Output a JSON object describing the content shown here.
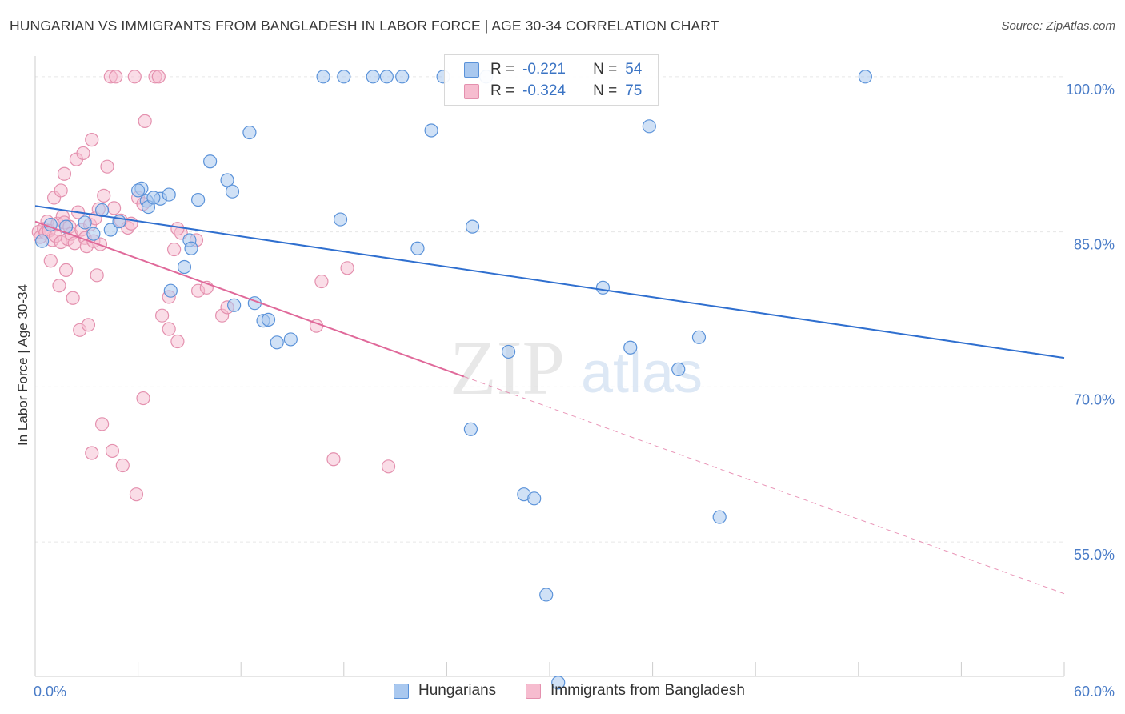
{
  "title": "HUNGARIAN VS IMMIGRANTS FROM BANGLADESH IN LABOR FORCE | AGE 30-34 CORRELATION CHART",
  "source": "Source: ZipAtlas.com",
  "watermark": {
    "zip": "ZIP",
    "atlas": "atlas"
  },
  "colors": {
    "blue_fill": "#a9c8ef",
    "blue_stroke": "#5a92d9",
    "blue_line": "#2f6fcf",
    "pink_fill": "#f6bccf",
    "pink_stroke": "#e490ae",
    "pink_line": "#e0699a",
    "axis_text": "#4a7cc7",
    "grid": "#e6e6e6"
  },
  "stats": {
    "rows": [
      {
        "r_label": "R =",
        "r_value": "-0.221",
        "n_label": "N =",
        "n_value": "54"
      },
      {
        "r_label": "R =",
        "r_value": "-0.324",
        "n_label": "N =",
        "n_value": "75"
      }
    ]
  },
  "legend": {
    "items": [
      {
        "label": "Hungarians"
      },
      {
        "label": "Immigrants from Bangladesh"
      }
    ]
  },
  "chart_data": {
    "type": "scatter",
    "xlabel": "",
    "ylabel": "In Labor Force | Age 30-34",
    "xlim": [
      0,
      60
    ],
    "ylim": [
      42,
      102
    ],
    "x_tick_labels": [
      {
        "value": 0,
        "label": "0.0%"
      },
      {
        "value": 60,
        "label": "60.0%"
      }
    ],
    "y_tick_labels": [
      {
        "value": 100,
        "label": "100.0%"
      },
      {
        "value": 85,
        "label": "85.0%"
      },
      {
        "value": 70,
        "label": "70.0%"
      },
      {
        "value": 55,
        "label": "55.0%"
      }
    ],
    "grid": true,
    "legend_position": "bottom",
    "series": [
      {
        "name": "Hungarians",
        "points": [
          [
            0.4,
            84.1
          ],
          [
            0.9,
            85.7
          ],
          [
            1.8,
            85.5
          ],
          [
            2.9,
            85.9
          ],
          [
            3.4,
            84.8
          ],
          [
            3.9,
            87.1
          ],
          [
            4.4,
            85.2
          ],
          [
            4.9,
            86.0
          ],
          [
            6.5,
            88.0
          ],
          [
            7.3,
            88.2
          ],
          [
            7.8,
            88.6
          ],
          [
            6.6,
            87.4
          ],
          [
            6.9,
            88.3
          ],
          [
            6.2,
            89.2
          ],
          [
            6.0,
            89.0
          ],
          [
            9.0,
            84.2
          ],
          [
            9.1,
            83.4
          ],
          [
            8.7,
            81.6
          ],
          [
            7.9,
            79.3
          ],
          [
            9.5,
            88.1
          ],
          [
            10.2,
            91.8
          ],
          [
            11.2,
            90.0
          ],
          [
            11.5,
            88.9
          ],
          [
            12.5,
            94.6
          ],
          [
            12.8,
            78.1
          ],
          [
            11.6,
            77.9
          ],
          [
            13.3,
            76.4
          ],
          [
            13.6,
            76.5
          ],
          [
            14.1,
            74.3
          ],
          [
            14.9,
            74.6
          ],
          [
            16.8,
            100.0
          ],
          [
            17.8,
            86.2
          ],
          [
            18.0,
            100.0
          ],
          [
            19.7,
            100.0
          ],
          [
            20.5,
            100.0
          ],
          [
            21.4,
            100.0
          ],
          [
            22.3,
            83.4
          ],
          [
            23.1,
            94.8
          ],
          [
            23.8,
            100.0
          ],
          [
            25.4,
            65.9
          ],
          [
            25.5,
            85.5
          ],
          [
            26.3,
            100.0
          ],
          [
            27.6,
            73.4
          ],
          [
            28.5,
            59.6
          ],
          [
            29.1,
            59.2
          ],
          [
            29.8,
            49.9
          ],
          [
            30.5,
            41.4
          ],
          [
            33.1,
            79.6
          ],
          [
            34.7,
            73.8
          ],
          [
            35.8,
            95.2
          ],
          [
            37.5,
            71.7
          ],
          [
            38.7,
            74.8
          ],
          [
            39.9,
            57.4
          ],
          [
            48.4,
            100.0
          ]
        ],
        "trend": {
          "x": [
            0,
            60
          ],
          "y": [
            87.5,
            72.8
          ]
        }
      },
      {
        "name": "Immigrants from Bangladesh",
        "points": [
          [
            0.2,
            85.0
          ],
          [
            0.3,
            84.5
          ],
          [
            0.5,
            85.3
          ],
          [
            0.6,
            84.9
          ],
          [
            0.7,
            86.0
          ],
          [
            0.8,
            85.1
          ],
          [
            1.0,
            84.2
          ],
          [
            1.2,
            84.6
          ],
          [
            1.3,
            85.8
          ],
          [
            1.5,
            84.0
          ],
          [
            1.6,
            86.5
          ],
          [
            1.7,
            85.9
          ],
          [
            1.9,
            84.3
          ],
          [
            2.0,
            85.5
          ],
          [
            2.1,
            84.8
          ],
          [
            2.3,
            83.9
          ],
          [
            2.5,
            86.9
          ],
          [
            2.7,
            85.2
          ],
          [
            2.9,
            84.4
          ],
          [
            3.0,
            83.6
          ],
          [
            3.2,
            85.7
          ],
          [
            3.4,
            84.1
          ],
          [
            3.5,
            86.3
          ],
          [
            3.7,
            87.2
          ],
          [
            0.9,
            82.2
          ],
          [
            1.4,
            79.8
          ],
          [
            1.8,
            81.3
          ],
          [
            2.2,
            78.6
          ],
          [
            2.6,
            75.5
          ],
          [
            3.1,
            76.0
          ],
          [
            3.6,
            80.8
          ],
          [
            3.8,
            83.8
          ],
          [
            1.1,
            88.3
          ],
          [
            1.5,
            89.0
          ],
          [
            1.7,
            90.6
          ],
          [
            2.4,
            92.0
          ],
          [
            2.8,
            92.6
          ],
          [
            3.3,
            93.9
          ],
          [
            4.2,
            91.3
          ],
          [
            4.0,
            88.5
          ],
          [
            4.6,
            87.3
          ],
          [
            5.0,
            86.1
          ],
          [
            5.4,
            85.4
          ],
          [
            5.6,
            85.8
          ],
          [
            6.0,
            88.3
          ],
          [
            6.3,
            87.7
          ],
          [
            6.4,
            95.7
          ],
          [
            4.4,
            100.0
          ],
          [
            4.7,
            100.0
          ],
          [
            5.8,
            100.0
          ],
          [
            7.0,
            100.0
          ],
          [
            7.2,
            100.0
          ],
          [
            7.8,
            78.7
          ],
          [
            7.4,
            76.9
          ],
          [
            7.8,
            75.6
          ],
          [
            8.3,
            74.4
          ],
          [
            8.1,
            83.3
          ],
          [
            8.5,
            84.9
          ],
          [
            8.3,
            85.3
          ],
          [
            9.4,
            84.2
          ],
          [
            9.5,
            79.3
          ],
          [
            10.0,
            79.6
          ],
          [
            10.9,
            76.9
          ],
          [
            11.2,
            77.7
          ],
          [
            16.4,
            75.9
          ],
          [
            16.7,
            80.2
          ],
          [
            17.4,
            63.0
          ],
          [
            18.2,
            81.5
          ],
          [
            20.6,
            62.3
          ],
          [
            3.3,
            63.6
          ],
          [
            4.5,
            63.8
          ],
          [
            5.1,
            62.4
          ],
          [
            5.9,
            59.6
          ],
          [
            6.3,
            68.9
          ],
          [
            3.9,
            66.4
          ]
        ],
        "trend": {
          "x": [
            0,
            25
          ],
          "y": [
            86.0,
            71.0
          ]
        },
        "trend_extension": {
          "x": [
            25,
            60
          ],
          "y": [
            71.0,
            50.0
          ]
        }
      }
    ]
  }
}
